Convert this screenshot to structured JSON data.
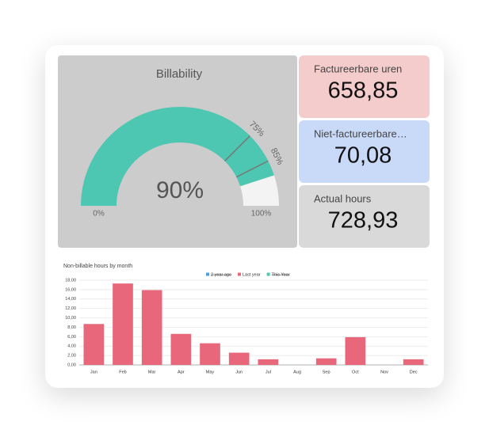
{
  "chart_data": [
    {
      "type": "gauge",
      "title": "Billability",
      "value": 90,
      "value_label": "90%",
      "range": [
        {
          "value": 0,
          "label": "0%"
        },
        {
          "value": 100,
          "label": "100%"
        }
      ],
      "markers": [
        {
          "value": 75,
          "label": "75%"
        },
        {
          "value": 85,
          "label": "85%"
        }
      ],
      "color": "#4dc7b2"
    },
    {
      "type": "bar",
      "title": "Non-billable hours by month",
      "categories": [
        "Jan",
        "Feb",
        "Mar",
        "Apr",
        "May",
        "Jun",
        "Jul",
        "Aug",
        "Sep",
        "Oct",
        "Nov",
        "Dec"
      ],
      "series": [
        {
          "name": "2 year ago",
          "color": "#4a9fe0",
          "hidden": true,
          "values": [
            null,
            null,
            null,
            null,
            null,
            null,
            null,
            null,
            null,
            null,
            null,
            null
          ]
        },
        {
          "name": "Last year",
          "color": "#e8677a",
          "hidden": false,
          "values": [
            8.7,
            17.3,
            15.9,
            6.6,
            4.6,
            2.6,
            1.2,
            0,
            1.4,
            5.9,
            0,
            1.2
          ]
        },
        {
          "name": "This Year",
          "color": "#4dc7b2",
          "hidden": true,
          "values": [
            null,
            null,
            null,
            null,
            null,
            null,
            null,
            null,
            null,
            null,
            null,
            null
          ]
        }
      ],
      "ylim": [
        0,
        18
      ],
      "yticks": [
        {
          "value": 0,
          "label": "0,00"
        },
        {
          "value": 2,
          "label": "2,00"
        },
        {
          "value": 4,
          "label": "4,00"
        },
        {
          "value": 6,
          "label": "6,00"
        },
        {
          "value": 8,
          "label": "8,00"
        },
        {
          "value": 10,
          "label": "10,00"
        },
        {
          "value": 12,
          "label": "12,00"
        },
        {
          "value": 14,
          "label": "14,00"
        },
        {
          "value": 16,
          "label": "16,00"
        },
        {
          "value": 18,
          "label": "18,00"
        }
      ],
      "grid": true
    }
  ],
  "cards": [
    {
      "label": "Factureerbare uren",
      "value": "658,85",
      "color": "#f4cccc"
    },
    {
      "label": "Niet-factureerbare…",
      "value": "70,08",
      "color": "#c9daf8"
    },
    {
      "label": "Actual hours",
      "value": "728,93",
      "color": "#d9d9d9"
    }
  ]
}
